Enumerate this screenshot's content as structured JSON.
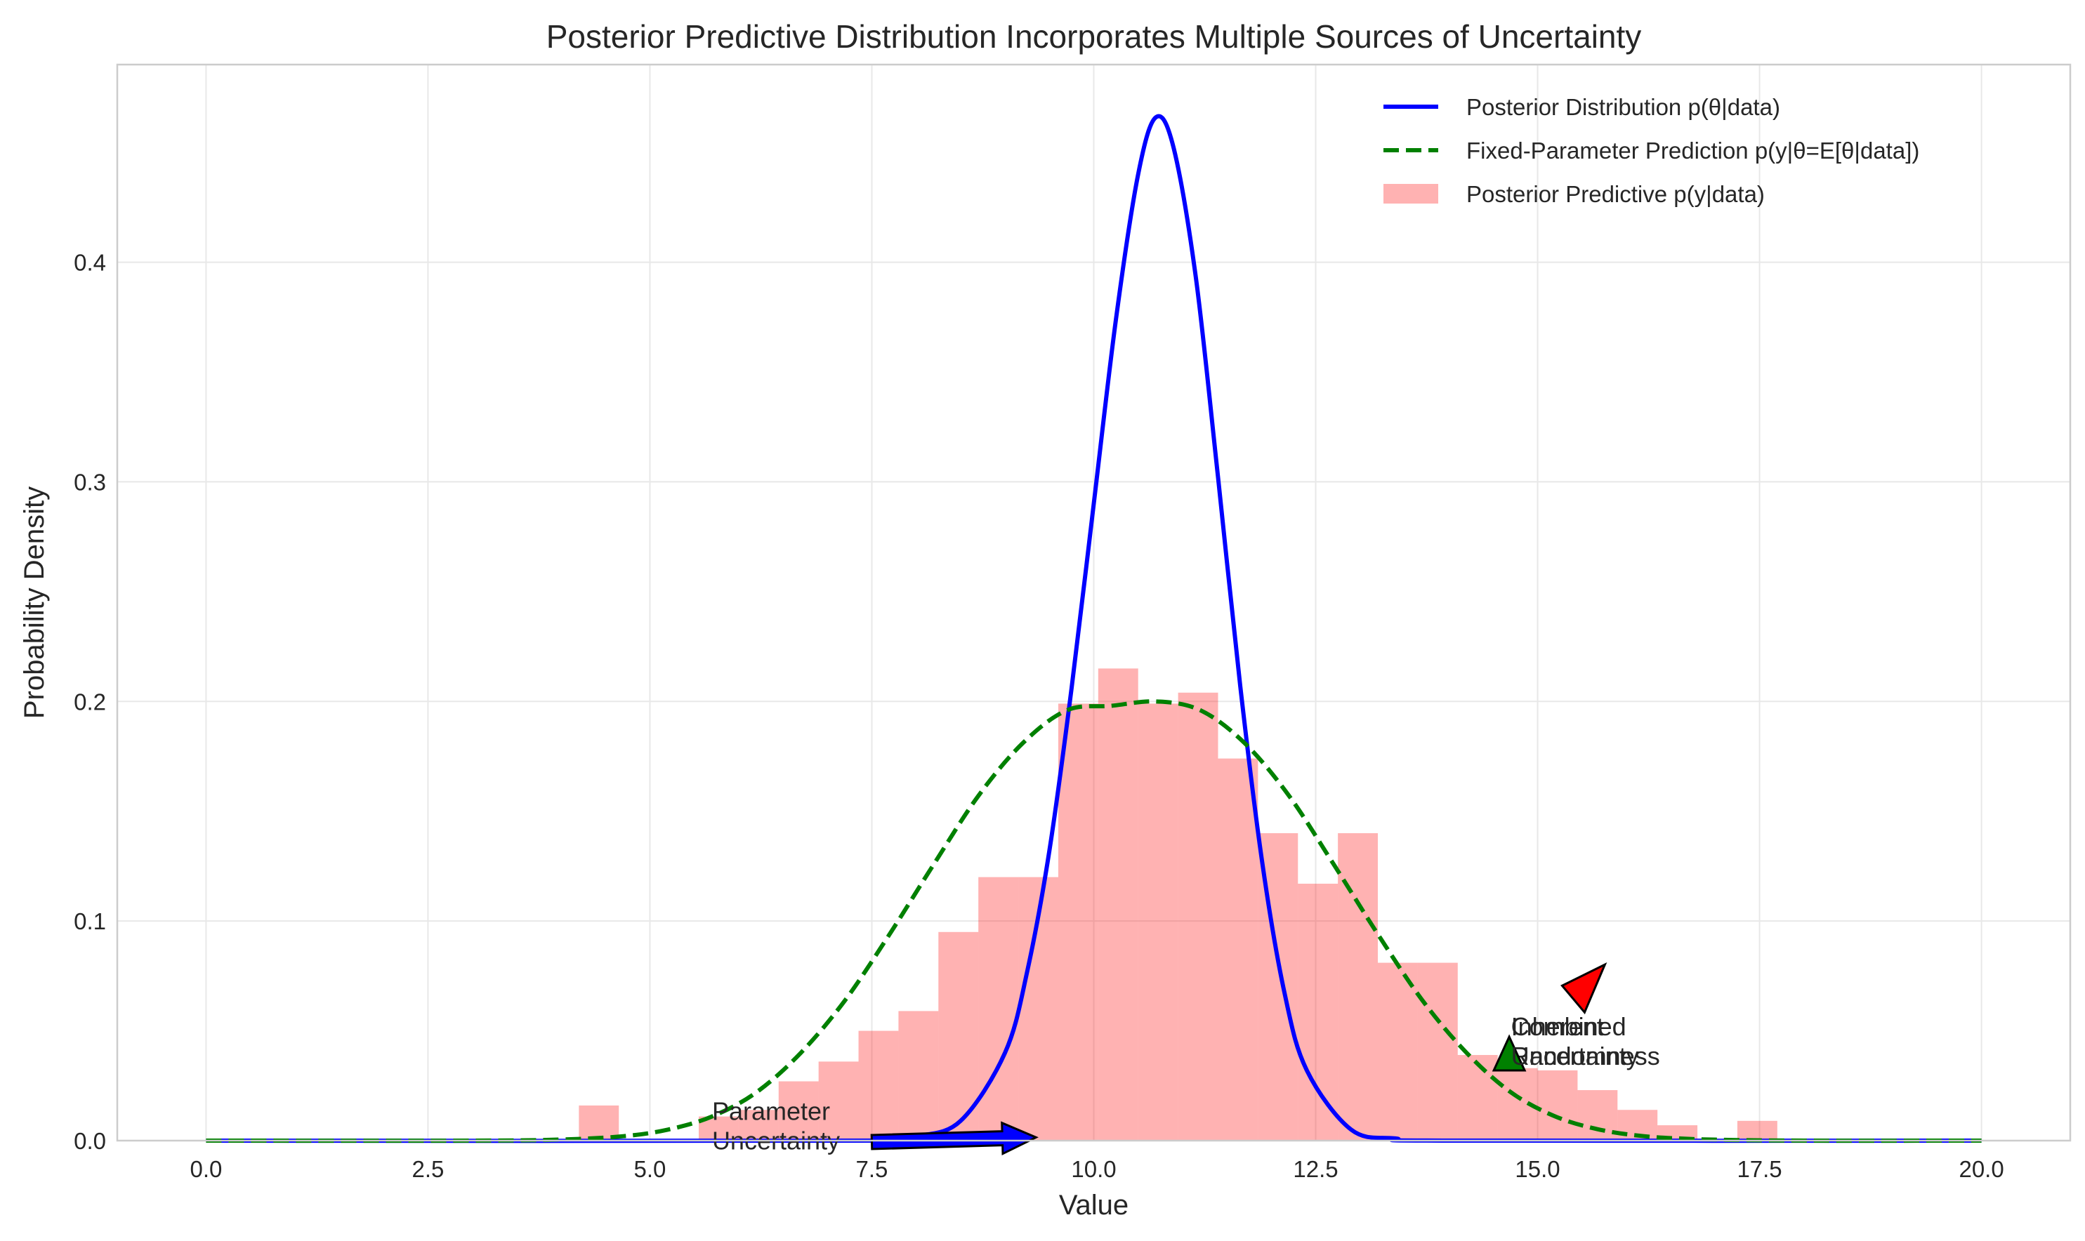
{
  "chart_data": {
    "type": "line",
    "title": "Posterior Predictive Distribution Incorporates Multiple Sources of Uncertainty",
    "xlabel": "Value",
    "ylabel": "Probability Density",
    "xlim": [
      -1.0,
      21.0
    ],
    "ylim": [
      0.0,
      0.49
    ],
    "grid": true,
    "legend_position": "top-right",
    "x_ticks": [
      0.0,
      2.5,
      5.0,
      7.5,
      10.0,
      12.5,
      15.0,
      17.5,
      20.0
    ],
    "x_tick_labels": [
      "0.0",
      "2.5",
      "5.0",
      "7.5",
      "10.0",
      "12.5",
      "15.0",
      "17.5",
      "20.0"
    ],
    "y_ticks": [
      0.0,
      0.1,
      0.2,
      0.3,
      0.4
    ],
    "y_tick_labels": [
      "0.0",
      "0.1",
      "0.2",
      "0.3",
      "0.4"
    ],
    "series": [
      {
        "name": "Posterior Distribution p(θ|data)",
        "kind": "line",
        "style": "solid",
        "color": "#0000ff",
        "x": [
          0.0,
          7.5,
          8.0,
          8.5,
          9.0,
          9.25,
          9.5,
          9.75,
          10.0,
          10.25,
          10.5,
          10.7,
          10.9,
          11.15,
          11.4,
          11.65,
          11.9,
          12.15,
          12.4,
          12.9,
          13.4,
          14.0,
          20.0
        ],
        "y": [
          0.0,
          0.0,
          0.002,
          0.009,
          0.04,
          0.077,
          0.132,
          0.206,
          0.29,
          0.374,
          0.44,
          0.466,
          0.452,
          0.393,
          0.302,
          0.207,
          0.126,
          0.067,
          0.032,
          0.005,
          0.001,
          0.0,
          0.0
        ]
      },
      {
        "name": "Fixed-Parameter Prediction p(y|θ=E[θ|data])",
        "kind": "line",
        "style": "dashed",
        "color": "#008000",
        "x": [
          0.0,
          3.0,
          4.0,
          4.7,
          5.2,
          5.7,
          6.2,
          6.7,
          7.2,
          7.7,
          8.2,
          8.7,
          9.2,
          9.7,
          10.2,
          10.7,
          11.2,
          11.7,
          12.2,
          12.7,
          13.2,
          13.7,
          14.2,
          14.7,
          15.2,
          15.7,
          16.2,
          16.7,
          17.2,
          18.0,
          20.0
        ],
        "y": [
          0.0,
          0.0,
          0.0005,
          0.002,
          0.005,
          0.011,
          0.022,
          0.04,
          0.064,
          0.094,
          0.126,
          0.157,
          0.181,
          0.196,
          0.198,
          0.2,
          0.196,
          0.181,
          0.157,
          0.126,
          0.094,
          0.064,
          0.04,
          0.022,
          0.011,
          0.005,
          0.002,
          0.0008,
          0.0003,
          0.0,
          0.0
        ]
      },
      {
        "name": "Posterior Predictive p(y|data)",
        "kind": "histogram",
        "color": "#ff0000",
        "opacity": 0.3,
        "bin_edges": [
          4.2,
          4.65,
          5.1,
          5.55,
          6.0,
          6.45,
          6.9,
          7.35,
          7.8,
          8.25,
          8.7,
          9.15,
          9.6,
          10.05,
          10.5,
          10.95,
          11.4,
          11.85,
          12.3,
          12.75,
          13.2,
          13.65,
          14.1,
          14.55,
          15.0,
          15.45,
          15.9,
          16.35,
          16.8,
          17.25,
          17.7
        ],
        "values": [
          0.016,
          0.0,
          0.0,
          0.011,
          0.014,
          0.027,
          0.036,
          0.05,
          0.059,
          0.095,
          0.12,
          0.12,
          0.199,
          0.215,
          0.199,
          0.204,
          0.174,
          0.14,
          0.117,
          0.14,
          0.081,
          0.081,
          0.039,
          0.033,
          0.032,
          0.023,
          0.014,
          0.007,
          0.0,
          0.009
        ]
      }
    ],
    "annotations": [
      {
        "text": "Parameter\nUncertainty",
        "text_x": 5.7,
        "text_y": 0.003,
        "arrow_from": [
          7.5,
          0.0
        ],
        "arrow_to": [
          9.35,
          0.0015
        ],
        "color": "#0000ff"
      },
      {
        "text": "Inherent\nRandomness",
        "text_x": 14.7,
        "text_y": 0.048,
        "arrow_from": [
          14.68,
          0.039
        ],
        "arrow_to": [
          14.68,
          0.039
        ],
        "color": "#008000",
        "marker": "up-triangle"
      },
      {
        "text": "Combined\nUncertainty",
        "text_x": 14.7,
        "text_y": 0.048,
        "arrow_from": [
          15.45,
          0.068
        ],
        "arrow_to": [
          15.6,
          0.077
        ],
        "color": "#ff0000",
        "marker": "arrowhead"
      }
    ]
  }
}
